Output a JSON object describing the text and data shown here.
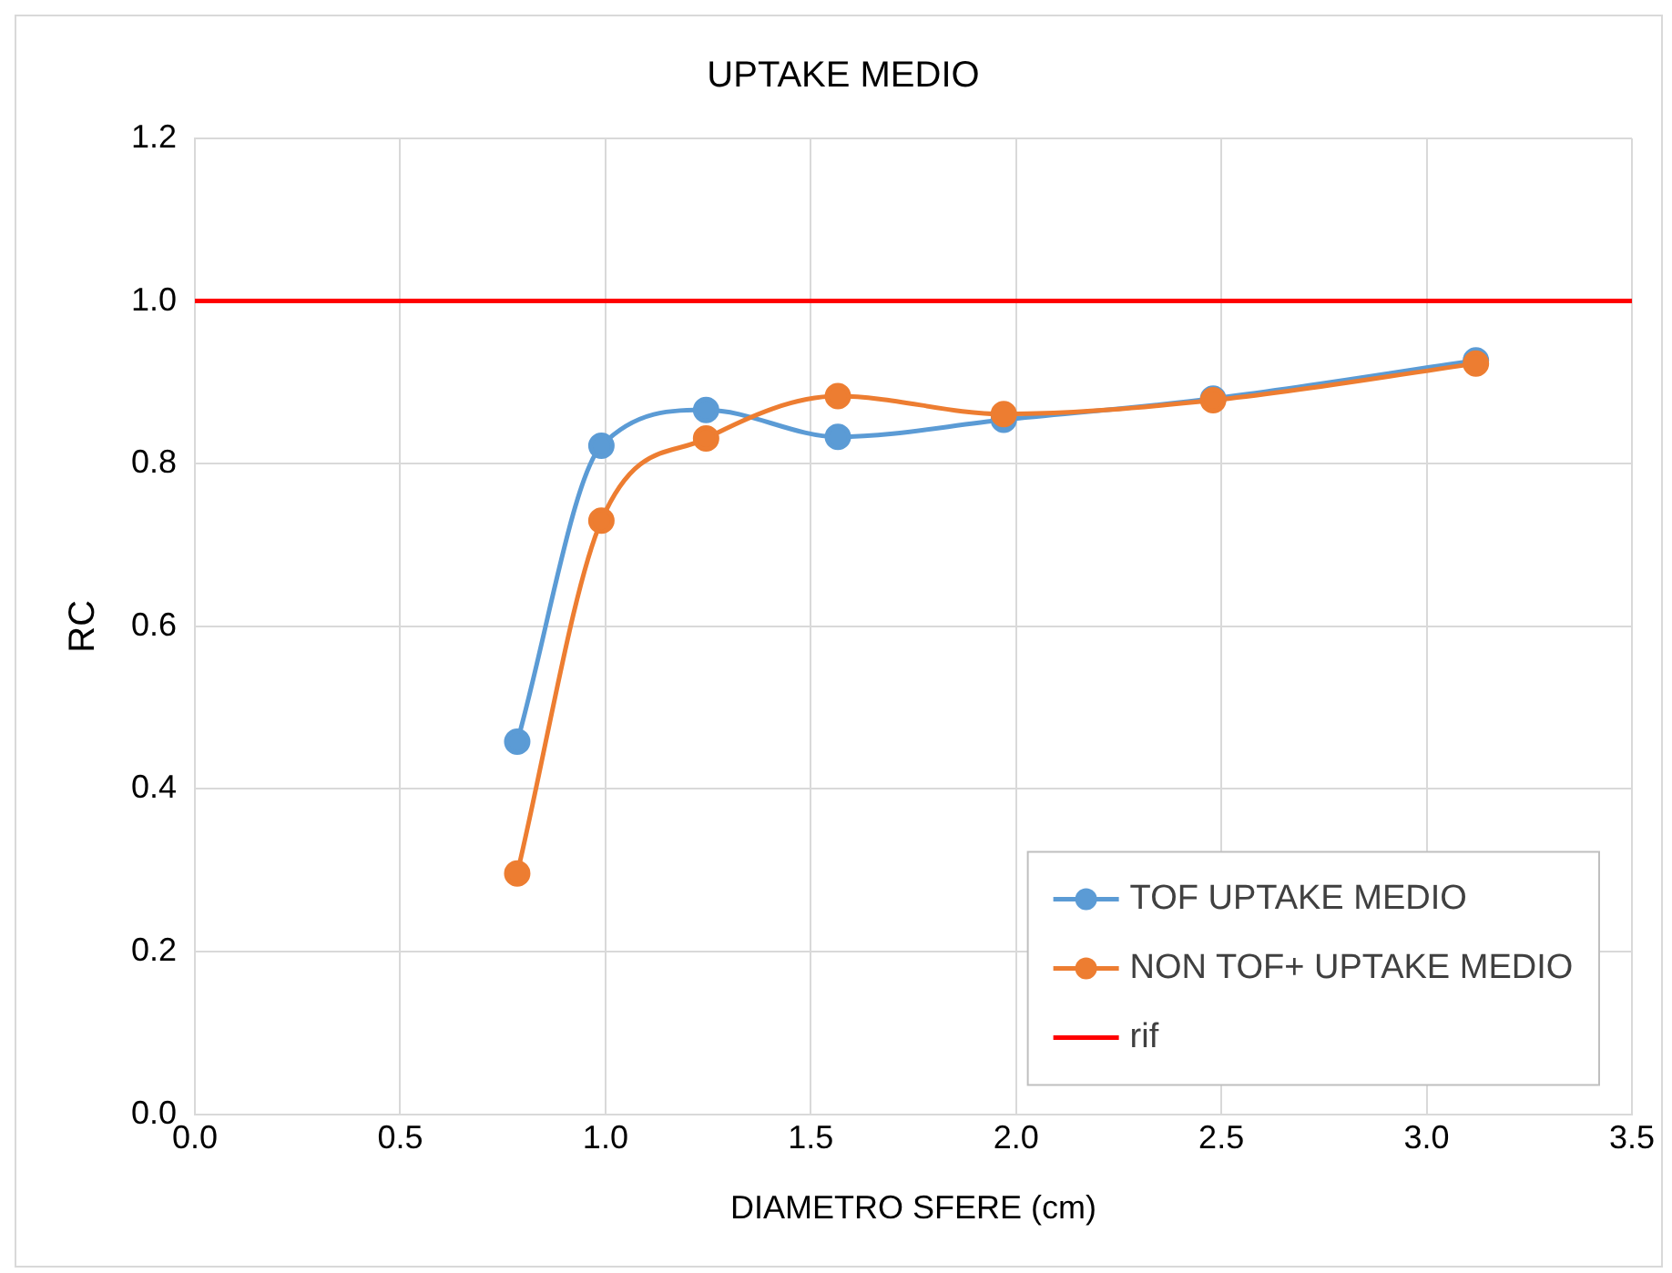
{
  "chart_data": {
    "type": "line",
    "title": "UPTAKE MEDIO",
    "xlabel": "DIAMETRO SFERE (cm)",
    "ylabel": "RC",
    "series": [
      {
        "name": "TOF UPTAKE MEDIO",
        "color": "#5b9bd5",
        "x": [
          0.785,
          0.99,
          1.245,
          1.566,
          1.97,
          2.48,
          3.12
        ],
        "values": [
          0.458,
          0.822,
          0.866,
          0.833,
          0.854,
          0.88,
          0.927
        ]
      },
      {
        "name": "NON TOF+ UPTAKE MEDIO",
        "color": "#ed7d31",
        "x": [
          0.785,
          0.99,
          1.245,
          1.566,
          1.97,
          2.48,
          3.12
        ],
        "values": [
          0.296,
          0.73,
          0.831,
          0.883,
          0.861,
          0.878,
          0.923
        ]
      }
    ],
    "ref_lines": [
      {
        "axis": "y",
        "value": 1.0,
        "label": "rif",
        "color": "#ff0000"
      }
    ],
    "xlim": [
      0,
      3.5
    ],
    "xticks": [
      {
        "value": 0,
        "label": "0.0"
      },
      {
        "value": 0.5,
        "label": "0.5"
      },
      {
        "value": 1,
        "label": "1.0"
      },
      {
        "value": 1.5,
        "label": "1.5"
      },
      {
        "value": 2,
        "label": "2.0"
      },
      {
        "value": 2.5,
        "label": "2.5"
      },
      {
        "value": 3,
        "label": "3.0"
      },
      {
        "value": 3.5,
        "label": "3.5"
      }
    ],
    "ylim": [
      0,
      1.2
    ],
    "yticks": [
      {
        "value": 0,
        "label": "0.0"
      },
      {
        "value": 0.2,
        "label": "0.2"
      },
      {
        "value": 0.4,
        "label": "0.4"
      },
      {
        "value": 0.6,
        "label": "0.6"
      },
      {
        "value": 0.8,
        "label": "0.8"
      },
      {
        "value": 1,
        "label": "1.0"
      },
      {
        "value": 1.2,
        "label": "1.2"
      }
    ],
    "grid": true,
    "legend": "bottom right",
    "marker": "circle",
    "line_style": "solid"
  }
}
